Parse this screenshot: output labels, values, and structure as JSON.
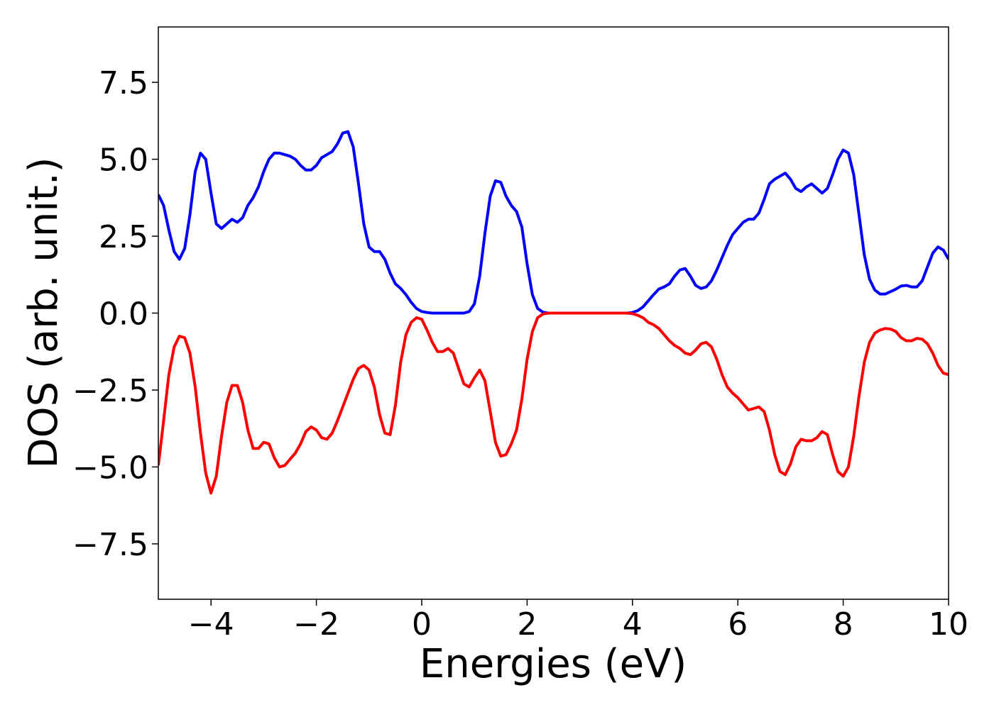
{
  "chart_data": {
    "type": "line",
    "xlabel": "Energies (eV)",
    "ylabel": "DOS (arb. unit.)",
    "xlim": [
      -5,
      10
    ],
    "ylim": [
      -9.3,
      9.3
    ],
    "xticks": [
      {
        "value": -4,
        "label": "−4"
      },
      {
        "value": -2,
        "label": "−2"
      },
      0,
      2,
      4,
      6,
      8,
      10
    ],
    "yticks": [
      {
        "value": -7.5,
        "label": "−7.5"
      },
      {
        "value": -5,
        "label": "−5.0"
      },
      {
        "value": -2.5,
        "label": "−2.5"
      },
      {
        "value": 0,
        "label": "0.0"
      },
      {
        "value": 2.5,
        "label": "2.5"
      },
      {
        "value": 5,
        "label": "5.0"
      },
      {
        "value": 7.5,
        "label": "7.5"
      }
    ],
    "x": [
      -5,
      -4.9,
      -4.8,
      -4.7,
      -4.6,
      -4.5,
      -4.4,
      -4.3,
      -4.2,
      -4.1,
      -4,
      -3.9,
      -3.8,
      -3.7,
      -3.6,
      -3.5,
      -3.4,
      -3.3,
      -3.2,
      -3.1,
      -3,
      -2.9,
      -2.8,
      -2.7,
      -2.6,
      -2.5,
      -2.4,
      -2.3,
      -2.2,
      -2.1,
      -2,
      -1.9,
      -1.8,
      -1.7,
      -1.6,
      -1.5,
      -1.4,
      -1.3,
      -1.2,
      -1.1,
      -1,
      -0.9,
      -0.8,
      -0.7,
      -0.6,
      -0.5,
      -0.4,
      -0.3,
      -0.2,
      -0.1,
      0,
      0.1,
      0.2,
      0.3,
      0.4,
      0.5,
      0.6,
      0.7,
      0.8,
      0.9,
      1,
      1.1,
      1.2,
      1.3,
      1.4,
      1.5,
      1.6,
      1.7,
      1.8,
      1.9,
      2,
      2.1,
      2.2,
      2.3,
      2.4,
      2.5,
      2.6,
      2.7,
      2.8,
      2.9,
      3,
      3.1,
      3.2,
      3.3,
      3.4,
      3.5,
      3.6,
      3.7,
      3.8,
      3.9,
      4,
      4.1,
      4.2,
      4.3,
      4.4,
      4.5,
      4.6,
      4.7,
      4.8,
      4.9,
      5,
      5.1,
      5.2,
      5.3,
      5.4,
      5.5,
      5.6,
      5.7,
      5.8,
      5.9,
      6,
      6.1,
      6.2,
      6.3,
      6.4,
      6.5,
      6.6,
      6.7,
      6.8,
      6.9,
      7,
      7.1,
      7.2,
      7.3,
      7.4,
      7.5,
      7.6,
      7.7,
      7.8,
      7.9,
      8,
      8.1,
      8.2,
      8.3,
      8.4,
      8.5,
      8.6,
      8.7,
      8.8,
      8.9,
      9,
      9.1,
      9.2,
      9.3,
      9.4,
      9.5,
      9.6,
      9.7,
      9.8,
      9.9,
      10
    ],
    "series": [
      {
        "color": "#0000ff",
        "values": [
          3.85,
          3.5,
          2.7,
          2.0,
          1.75,
          2.1,
          3.2,
          4.6,
          5.2,
          5.0,
          3.9,
          2.9,
          2.75,
          2.9,
          3.05,
          2.95,
          3.1,
          3.5,
          3.75,
          4.1,
          4.6,
          5.0,
          5.2,
          5.2,
          5.15,
          5.1,
          5.0,
          4.8,
          4.65,
          4.65,
          4.8,
          5.05,
          5.15,
          5.25,
          5.5,
          5.85,
          5.9,
          5.4,
          4.2,
          2.9,
          2.15,
          2.0,
          2.0,
          1.75,
          1.3,
          0.95,
          0.8,
          0.6,
          0.35,
          0.15,
          0.05,
          0.02,
          0,
          0,
          0,
          0,
          0,
          0,
          0,
          0.05,
          0.3,
          1.2,
          2.6,
          3.8,
          4.3,
          4.25,
          3.8,
          3.5,
          3.3,
          2.8,
          1.6,
          0.6,
          0.15,
          0.03,
          0,
          0,
          0,
          0,
          0,
          0,
          0,
          0,
          0,
          0,
          0,
          0,
          0,
          0,
          0,
          0,
          0.02,
          0.08,
          0.2,
          0.4,
          0.6,
          0.78,
          0.85,
          0.95,
          1.2,
          1.4,
          1.45,
          1.2,
          0.9,
          0.8,
          0.85,
          1.05,
          1.4,
          1.8,
          2.2,
          2.55,
          2.75,
          2.95,
          3.05,
          3.05,
          3.25,
          3.7,
          4.2,
          4.35,
          4.45,
          4.55,
          4.35,
          4.05,
          3.95,
          4.1,
          4.2,
          4.05,
          3.9,
          4.05,
          4.5,
          5.0,
          5.3,
          5.2,
          4.5,
          3.2,
          1.9,
          1.1,
          0.75,
          0.62,
          0.62,
          0.7,
          0.78,
          0.88,
          0.9,
          0.85,
          0.85,
          1.05,
          1.5,
          1.95,
          2.15,
          2.05,
          1.75
        ]
      },
      {
        "color": "#ff0000",
        "values": [
          -4.95,
          -3.5,
          -2.0,
          -1.1,
          -0.75,
          -0.8,
          -1.3,
          -2.4,
          -3.9,
          -5.2,
          -5.85,
          -5.3,
          -4.0,
          -2.9,
          -2.35,
          -2.35,
          -2.9,
          -3.8,
          -4.4,
          -4.4,
          -4.2,
          -4.25,
          -4.7,
          -5.0,
          -4.95,
          -4.75,
          -4.55,
          -4.25,
          -3.85,
          -3.7,
          -3.8,
          -4.05,
          -4.1,
          -3.9,
          -3.5,
          -3.05,
          -2.6,
          -2.15,
          -1.8,
          -1.7,
          -1.85,
          -2.4,
          -3.3,
          -3.9,
          -3.95,
          -3.0,
          -1.6,
          -0.7,
          -0.3,
          -0.15,
          -0.2,
          -0.55,
          -0.95,
          -1.25,
          -1.25,
          -1.15,
          -1.3,
          -1.8,
          -2.3,
          -2.4,
          -2.1,
          -1.85,
          -2.2,
          -3.2,
          -4.2,
          -4.65,
          -4.6,
          -4.25,
          -3.8,
          -2.8,
          -1.5,
          -0.6,
          -0.15,
          -0.03,
          0,
          0,
          0,
          0,
          0,
          0,
          0,
          0,
          0,
          0,
          0,
          0,
          0,
          0,
          0,
          0,
          -0.02,
          -0.07,
          -0.15,
          -0.3,
          -0.38,
          -0.5,
          -0.7,
          -0.9,
          -1.05,
          -1.15,
          -1.3,
          -1.35,
          -1.2,
          -1.0,
          -0.95,
          -1.1,
          -1.5,
          -2.0,
          -2.4,
          -2.6,
          -2.75,
          -2.95,
          -3.15,
          -3.1,
          -3.05,
          -3.2,
          -3.8,
          -4.6,
          -5.15,
          -5.25,
          -4.9,
          -4.35,
          -4.1,
          -4.15,
          -4.15,
          -4.05,
          -3.85,
          -3.95,
          -4.6,
          -5.15,
          -5.3,
          -5.0,
          -4.0,
          -2.7,
          -1.6,
          -0.95,
          -0.65,
          -0.55,
          -0.5,
          -0.52,
          -0.6,
          -0.8,
          -0.9,
          -0.9,
          -0.82,
          -0.85,
          -1.0,
          -1.3,
          -1.7,
          -1.95,
          -2.0
        ]
      }
    ]
  }
}
